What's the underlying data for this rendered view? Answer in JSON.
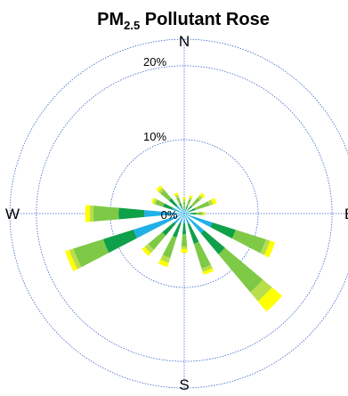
{
  "chart_data": {
    "type": "pollutant-rose",
    "title": {
      "prefix": "PM",
      "subscript": "2.5",
      "suffix": " Pollutant Rose"
    },
    "directions": {
      "north": "N",
      "east": "E",
      "south": "S",
      "west": "W"
    },
    "rings": [
      {
        "value": 10,
        "label": "10%"
      },
      {
        "value": 20,
        "label": "20%"
      }
    ],
    "center_label": "0%",
    "rmax": 23.6,
    "sector_width_deg": 10,
    "band_colors": [
      "#1fb0e6",
      "#0fa04a",
      "#7ec945",
      "#b9de4c",
      "#ffff00"
    ],
    "sectors": [
      {
        "direction_deg": 0,
        "cumulative_percent": [
          0.4,
          1.0,
          1.6,
          1.9,
          2.2
        ]
      },
      {
        "direction_deg": 22.5,
        "cumulative_percent": [
          0.5,
          1.1,
          2.0,
          2.3,
          2.6
        ]
      },
      {
        "direction_deg": 45,
        "cumulative_percent": [
          0.6,
          1.4,
          2.8,
          3.3,
          3.7
        ]
      },
      {
        "direction_deg": 67.5,
        "cumulative_percent": [
          0.7,
          1.6,
          3.6,
          4.1,
          4.6
        ]
      },
      {
        "direction_deg": 90,
        "cumulative_percent": [
          0.8,
          1.6,
          2.4,
          2.6,
          2.8
        ]
      },
      {
        "direction_deg": 112.5,
        "cumulative_percent": [
          4.0,
          7.3,
          11.6,
          12.2,
          12.9
        ]
      },
      {
        "direction_deg": 135,
        "cumulative_percent": [
          3.5,
          7.2,
          13.9,
          15.5,
          17.3
        ]
      },
      {
        "direction_deg": 157.5,
        "cumulative_percent": [
          1.5,
          4.3,
          7.8,
          8.3,
          8.7
        ]
      },
      {
        "direction_deg": 180,
        "cumulative_percent": [
          1.3,
          2.8,
          4.4,
          4.8,
          5.3
        ]
      },
      {
        "direction_deg": 202.5,
        "cumulative_percent": [
          1.4,
          3.4,
          6.3,
          7.0,
          7.6
        ]
      },
      {
        "direction_deg": 225,
        "cumulative_percent": [
          1.8,
          3.9,
          6.4,
          7.0,
          7.5
        ]
      },
      {
        "direction_deg": 247.5,
        "cumulative_percent": [
          7.2,
          11.5,
          15.7,
          16.3,
          16.9
        ]
      },
      {
        "direction_deg": 270,
        "cumulative_percent": [
          5.4,
          8.9,
          12.3,
          12.8,
          13.4
        ]
      },
      {
        "direction_deg": 292.5,
        "cumulative_percent": [
          1.7,
          3.0,
          4.1,
          4.4,
          4.7
        ]
      },
      {
        "direction_deg": 315,
        "cumulative_percent": [
          1.4,
          2.7,
          4.2,
          4.6,
          5.0
        ]
      },
      {
        "direction_deg": 337.5,
        "cumulative_percent": [
          0.7,
          1.5,
          2.3,
          2.7,
          3.0
        ]
      }
    ],
    "grid": true
  }
}
